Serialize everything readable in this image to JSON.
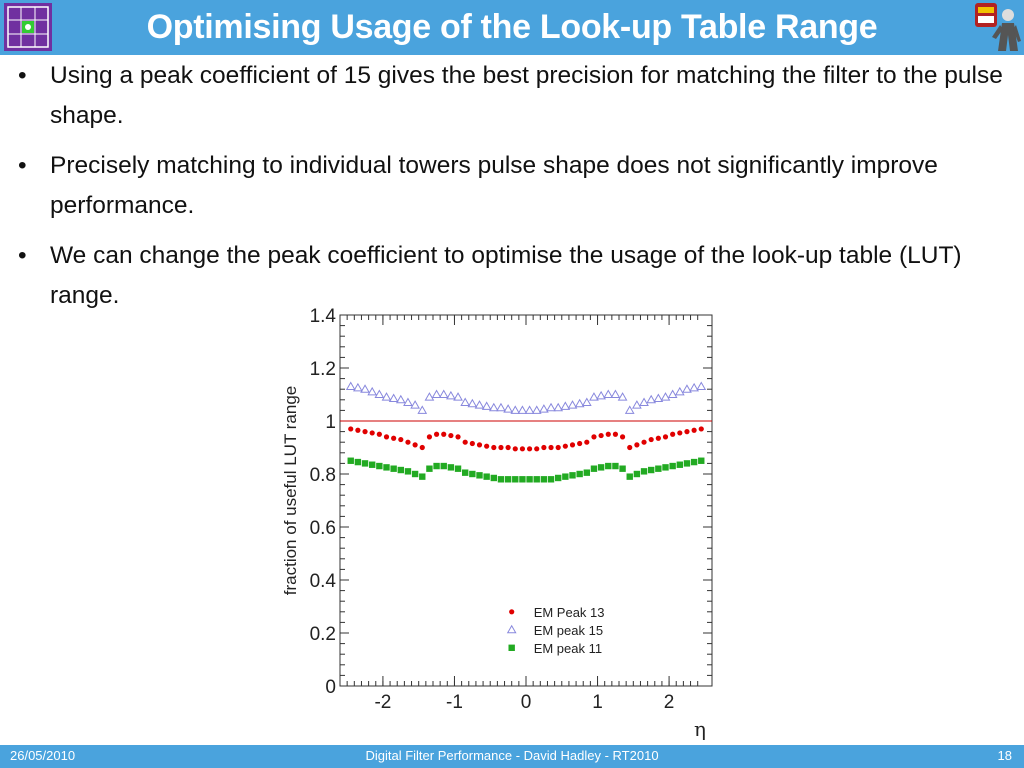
{
  "slide": {
    "title": "Optimising Usage of the Look-up Table Range",
    "bullets": [
      "Using a peak coefficient of 15 gives the best precision for matching the filter to the pulse shape.",
      "Precisely matching to individual towers pulse shape does not significantly improve performance.",
      "We can change the peak coefficient to optimise  the usage of the look-up table (LUT) range."
    ],
    "bullet_symbol": "•",
    "icons": {
      "left_logo": "grid-logo-icon",
      "right_logo": "atlas-crest-icon"
    }
  },
  "footer": {
    "date": "26/05/2010",
    "center": "Digital Filter Performance  - David Hadley - RT2010",
    "page": "18"
  },
  "chart_data": {
    "type": "scatter",
    "xlabel": "η",
    "ylabel": "fraction of useful LUT range",
    "xlim": [
      -2.6,
      2.6
    ],
    "ylim": [
      0,
      1.4
    ],
    "xticks": [
      "-2",
      "-1",
      "0",
      "1",
      "2"
    ],
    "xtick_values": [
      -2,
      -1,
      0,
      1,
      2
    ],
    "yticks": [
      "0",
      "0.2",
      "0.4",
      "0.6",
      "0.8",
      "1",
      "1.2",
      "1.4"
    ],
    "ytick_values": [
      0,
      0.2,
      0.4,
      0.6,
      0.8,
      1.0,
      1.2,
      1.4
    ],
    "reference_line": 1.0,
    "reference_color": "#cc0000",
    "legend_position": "bottom-right",
    "x": [
      -2.45,
      -2.35,
      -2.25,
      -2.15,
      -2.05,
      -1.95,
      -1.85,
      -1.75,
      -1.65,
      -1.55,
      -1.45,
      -1.35,
      -1.25,
      -1.15,
      -1.05,
      -0.95,
      -0.85,
      -0.75,
      -0.65,
      -0.55,
      -0.45,
      -0.35,
      -0.25,
      -0.15,
      -0.05,
      0.05,
      0.15,
      0.25,
      0.35,
      0.45,
      0.55,
      0.65,
      0.75,
      0.85,
      0.95,
      1.05,
      1.15,
      1.25,
      1.35,
      1.45,
      1.55,
      1.65,
      1.75,
      1.85,
      1.95,
      2.05,
      2.15,
      2.25,
      2.35,
      2.45
    ],
    "series": [
      {
        "name": "EM Peak 13",
        "marker": "circle",
        "color": "#e00000",
        "values": [
          0.97,
          0.965,
          0.96,
          0.955,
          0.95,
          0.94,
          0.935,
          0.93,
          0.92,
          0.91,
          0.9,
          0.94,
          0.95,
          0.95,
          0.945,
          0.94,
          0.92,
          0.915,
          0.91,
          0.905,
          0.9,
          0.9,
          0.9,
          0.895,
          0.895,
          0.895,
          0.895,
          0.9,
          0.9,
          0.9,
          0.905,
          0.91,
          0.915,
          0.92,
          0.94,
          0.945,
          0.95,
          0.95,
          0.94,
          0.9,
          0.91,
          0.92,
          0.93,
          0.935,
          0.94,
          0.95,
          0.955,
          0.96,
          0.965,
          0.97
        ]
      },
      {
        "name": "EM peak 15",
        "marker": "triangle",
        "color": "#8888dd",
        "values": [
          1.13,
          1.125,
          1.12,
          1.11,
          1.1,
          1.09,
          1.085,
          1.08,
          1.07,
          1.06,
          1.04,
          1.09,
          1.1,
          1.1,
          1.095,
          1.09,
          1.07,
          1.065,
          1.06,
          1.055,
          1.05,
          1.05,
          1.045,
          1.04,
          1.04,
          1.04,
          1.04,
          1.045,
          1.05,
          1.05,
          1.055,
          1.06,
          1.065,
          1.07,
          1.09,
          1.095,
          1.1,
          1.1,
          1.09,
          1.04,
          1.06,
          1.07,
          1.08,
          1.085,
          1.09,
          1.1,
          1.11,
          1.12,
          1.125,
          1.13
        ]
      },
      {
        "name": "EM peak 11",
        "marker": "square",
        "color": "#22aa22",
        "values": [
          0.85,
          0.845,
          0.84,
          0.835,
          0.83,
          0.825,
          0.82,
          0.815,
          0.81,
          0.8,
          0.79,
          0.82,
          0.83,
          0.83,
          0.825,
          0.82,
          0.805,
          0.8,
          0.795,
          0.79,
          0.785,
          0.78,
          0.78,
          0.78,
          0.78,
          0.78,
          0.78,
          0.78,
          0.78,
          0.785,
          0.79,
          0.795,
          0.8,
          0.805,
          0.82,
          0.825,
          0.83,
          0.83,
          0.82,
          0.79,
          0.8,
          0.81,
          0.815,
          0.82,
          0.825,
          0.83,
          0.835,
          0.84,
          0.845,
          0.85
        ]
      }
    ]
  }
}
